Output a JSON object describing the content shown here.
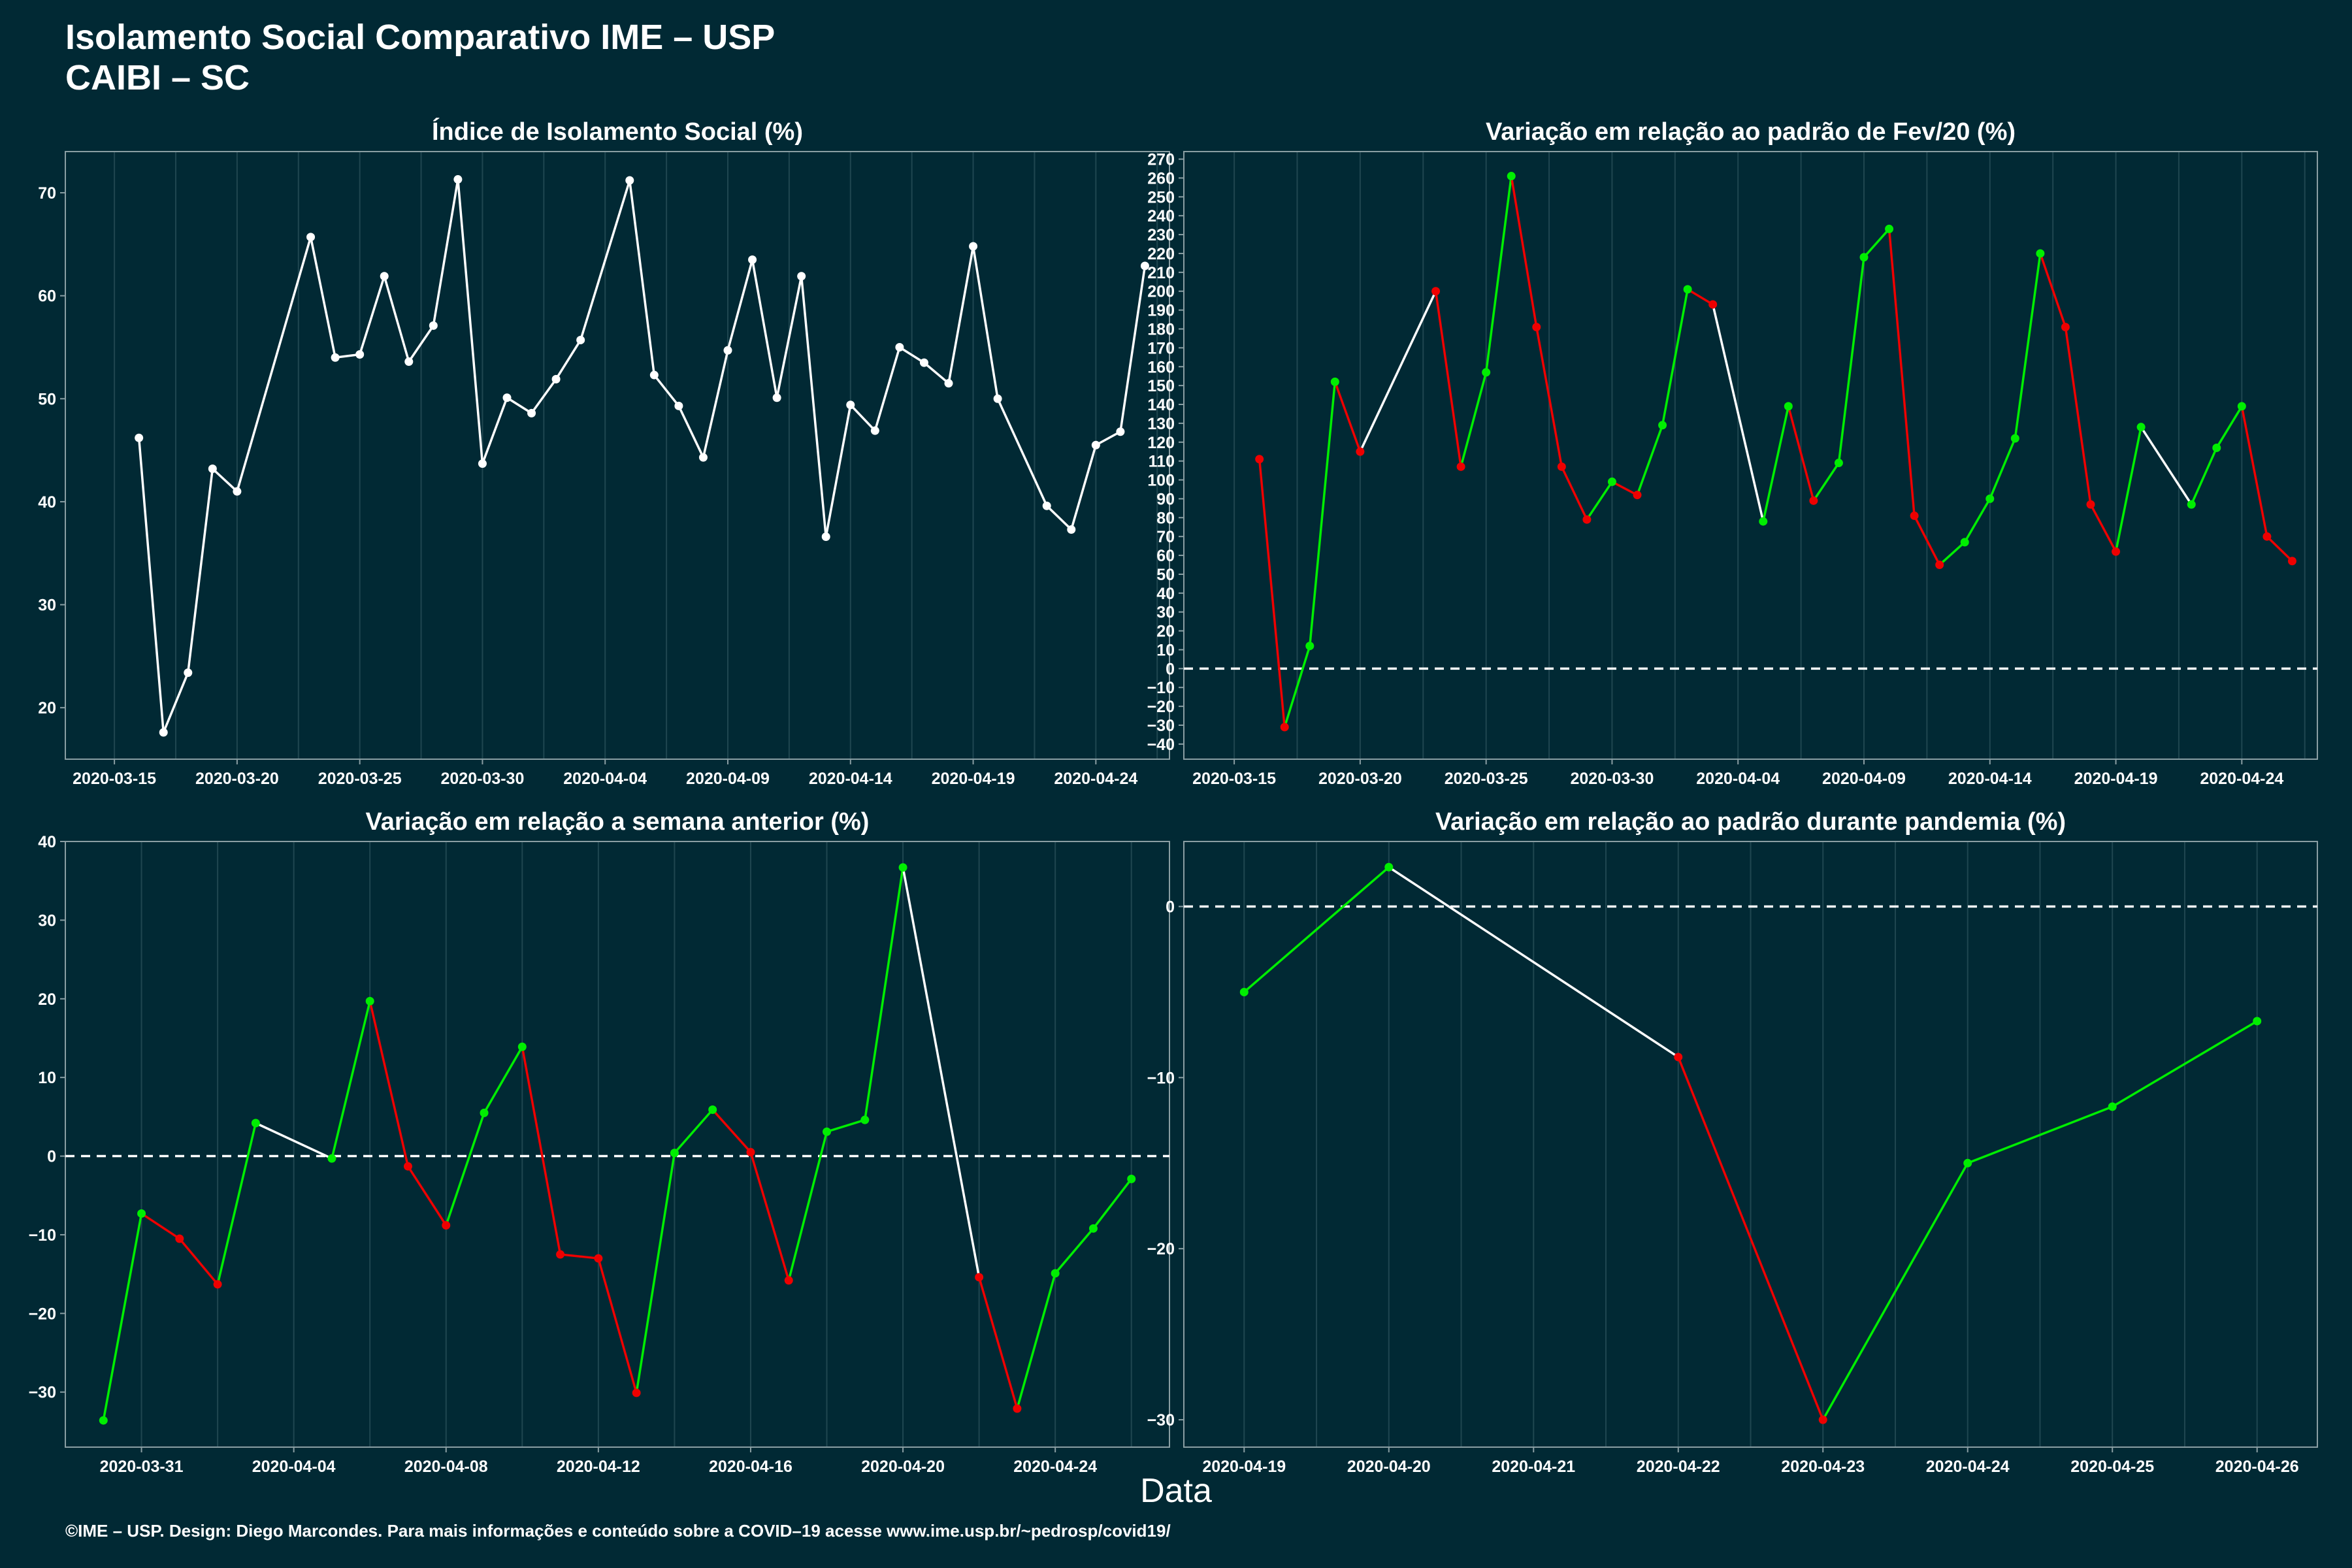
{
  "header": {
    "title_line1": "Isolamento Social Comparativo IME – USP",
    "title_line2": "CAIBI – SC"
  },
  "x_axis_title": "Data",
  "footer": "©IME – USP. Design: Diego Marcondes. Para mais informações e conteúdo sobre a COVID–19 acesse www.ime.usp.br/~pedrosp/covid19/",
  "colors": {
    "background": "#012934",
    "up": "#00ee00",
    "down": "#ee0000",
    "neutral": "#ffffff",
    "grid": "#1f4650"
  },
  "chart_data": [
    {
      "type": "line",
      "title": "Índice de Isolamento Social (%)",
      "x_range": [
        "2020-03-13",
        "2020-04-27"
      ],
      "x_ticks": [
        "2020-03-15",
        "2020-03-20",
        "2020-03-25",
        "2020-03-30",
        "2020-04-04",
        "2020-04-09",
        "2020-04-14",
        "2020-04-19",
        "2020-04-24"
      ],
      "ylim": [
        15,
        74
      ],
      "y_ticks": [
        20,
        30,
        40,
        50,
        60,
        70
      ],
      "colored": false,
      "reference_line": null,
      "series": [
        {
          "points": [
            [
              "2020-03-16",
              46.2
            ],
            [
              "2020-03-17",
              17.6
            ],
            [
              "2020-03-18",
              23.4
            ],
            [
              "2020-03-19",
              43.2
            ],
            [
              "2020-03-20",
              41.0
            ],
            [
              "2020-03-23",
              65.7
            ],
            [
              "2020-03-24",
              54.0
            ],
            [
              "2020-03-25",
              54.3
            ],
            [
              "2020-03-26",
              61.9
            ],
            [
              "2020-03-27",
              53.6
            ],
            [
              "2020-03-28",
              57.1
            ],
            [
              "2020-03-29",
              71.3
            ],
            [
              "2020-03-30",
              43.7
            ],
            [
              "2020-03-31",
              50.1
            ],
            [
              "2020-04-01",
              48.6
            ],
            [
              "2020-04-02",
              51.9
            ],
            [
              "2020-04-03",
              55.7
            ],
            [
              "2020-04-05",
              71.2
            ],
            [
              "2020-04-06",
              52.3
            ],
            [
              "2020-04-07",
              49.3
            ],
            [
              "2020-04-08",
              44.3
            ],
            [
              "2020-04-09",
              54.7
            ],
            [
              "2020-04-10",
              63.5
            ],
            [
              "2020-04-11",
              50.1
            ],
            [
              "2020-04-12",
              61.9
            ],
            [
              "2020-04-13",
              36.6
            ],
            [
              "2020-04-14",
              49.4
            ],
            [
              "2020-04-15",
              46.9
            ],
            [
              "2020-04-16",
              55.0
            ],
            [
              "2020-04-17",
              53.5
            ],
            [
              "2020-04-18",
              51.5
            ],
            [
              "2020-04-19",
              64.8
            ],
            [
              "2020-04-20",
              50.0
            ],
            [
              "2020-04-22",
              39.6
            ],
            [
              "2020-04-23",
              37.3
            ],
            [
              "2020-04-24",
              45.5
            ],
            [
              "2020-04-25",
              46.8
            ],
            [
              "2020-04-26",
              62.9
            ]
          ]
        }
      ]
    },
    {
      "type": "line",
      "title": "Variação em relação ao padrão de Fev/20 (%)",
      "x_range": [
        "2020-03-13",
        "2020-04-27"
      ],
      "x_ticks": [
        "2020-03-15",
        "2020-03-20",
        "2020-03-25",
        "2020-03-30",
        "2020-04-04",
        "2020-04-09",
        "2020-04-14",
        "2020-04-19",
        "2020-04-24"
      ],
      "ylim": [
        -48,
        274
      ],
      "y_ticks": [
        -40,
        -30,
        -20,
        -10,
        0,
        10,
        20,
        30,
        40,
        50,
        60,
        70,
        80,
        90,
        100,
        110,
        120,
        130,
        140,
        150,
        160,
        170,
        180,
        190,
        200,
        210,
        220,
        230,
        240,
        250,
        260,
        270
      ],
      "colored": true,
      "reference_line": 0,
      "series": [
        {
          "points": [
            [
              "2020-03-16",
              111
            ],
            [
              "2020-03-17",
              -31
            ],
            [
              "2020-03-18",
              12
            ],
            [
              "2020-03-19",
              152
            ],
            [
              "2020-03-20",
              115
            ],
            [
              "2020-03-23",
              200
            ],
            [
              "2020-03-24",
              107
            ],
            [
              "2020-03-25",
              157
            ],
            [
              "2020-03-26",
              261
            ],
            [
              "2020-03-27",
              181
            ],
            [
              "2020-03-28",
              107
            ],
            [
              "2020-03-29",
              79
            ],
            [
              "2020-03-30",
              99
            ],
            [
              "2020-03-31",
              92
            ],
            [
              "2020-04-01",
              129
            ],
            [
              "2020-04-02",
              201
            ],
            [
              "2020-04-03",
              193
            ],
            [
              "2020-04-05",
              78
            ],
            [
              "2020-04-06",
              139
            ],
            [
              "2020-04-07",
              89
            ],
            [
              "2020-04-08",
              109
            ],
            [
              "2020-04-09",
              218
            ],
            [
              "2020-04-10",
              233
            ],
            [
              "2020-04-11",
              81
            ],
            [
              "2020-04-12",
              55
            ],
            [
              "2020-04-13",
              67
            ],
            [
              "2020-04-14",
              90
            ],
            [
              "2020-04-15",
              122
            ],
            [
              "2020-04-16",
              220
            ],
            [
              "2020-04-17",
              181
            ],
            [
              "2020-04-18",
              87
            ],
            [
              "2020-04-19",
              62
            ],
            [
              "2020-04-20",
              128
            ],
            [
              "2020-04-22",
              87
            ],
            [
              "2020-04-23",
              117
            ],
            [
              "2020-04-24",
              139
            ],
            [
              "2020-04-25",
              70
            ],
            [
              "2020-04-26",
              57
            ]
          ]
        }
      ]
    },
    {
      "type": "line",
      "title": "Variação em relação a semana anterior (%)",
      "x_range": [
        "2020-03-29",
        "2020-04-27"
      ],
      "x_ticks": [
        "2020-03-31",
        "2020-04-04",
        "2020-04-08",
        "2020-04-12",
        "2020-04-16",
        "2020-04-20",
        "2020-04-24"
      ],
      "ylim": [
        -37,
        40
      ],
      "y_ticks": [
        -30,
        -20,
        -10,
        0,
        10,
        20,
        30,
        40
      ],
      "colored": true,
      "reference_line": 0,
      "series": [
        {
          "points": [
            [
              "2020-03-30",
              -33.6
            ],
            [
              "2020-03-31",
              -7.3
            ],
            [
              "2020-04-01",
              -10.5
            ],
            [
              "2020-04-02",
              -16.3
            ],
            [
              "2020-04-03",
              4.2
            ],
            [
              "2020-04-05",
              -0.3
            ],
            [
              "2020-04-06",
              19.7
            ],
            [
              "2020-04-07",
              -1.3
            ],
            [
              "2020-04-08",
              -8.8
            ],
            [
              "2020-04-09",
              5.5
            ],
            [
              "2020-04-10",
              13.9
            ],
            [
              "2020-04-11",
              -12.5
            ],
            [
              "2020-04-12",
              -13.0
            ],
            [
              "2020-04-13",
              -30.1
            ],
            [
              "2020-04-14",
              0.4
            ],
            [
              "2020-04-15",
              5.9
            ],
            [
              "2020-04-16",
              0.5
            ],
            [
              "2020-04-17",
              -15.8
            ],
            [
              "2020-04-18",
              3.1
            ],
            [
              "2020-04-19",
              4.6
            ],
            [
              "2020-04-20",
              36.7
            ],
            [
              "2020-04-22",
              -15.4
            ],
            [
              "2020-04-23",
              -32.1
            ],
            [
              "2020-04-24",
              -14.9
            ],
            [
              "2020-04-25",
              -9.2
            ],
            [
              "2020-04-26",
              -2.9
            ]
          ]
        }
      ]
    },
    {
      "type": "line",
      "title": "Variação em relação ao padrão durante pandemia (%)",
      "x_range": [
        "2020-04-18 14:00",
        "2020-04-26 10:00"
      ],
      "x_ticks": [
        "2020-04-19",
        "2020-04-20",
        "2020-04-21",
        "2020-04-22",
        "2020-04-23",
        "2020-04-24",
        "2020-04-25",
        "2020-04-26"
      ],
      "ylim": [
        -31.6,
        3.8
      ],
      "y_ticks": [
        -30,
        -20,
        -10,
        0
      ],
      "colored": true,
      "reference_line": 0,
      "series": [
        {
          "points": [
            [
              "2020-04-19",
              -5.0
            ],
            [
              "2020-04-20",
              2.3
            ],
            [
              "2020-04-22",
              -8.8
            ],
            [
              "2020-04-23",
              -30.0
            ],
            [
              "2020-04-24",
              -15.0
            ],
            [
              "2020-04-25",
              -11.7
            ],
            [
              "2020-04-26",
              -6.7
            ]
          ]
        }
      ]
    }
  ]
}
